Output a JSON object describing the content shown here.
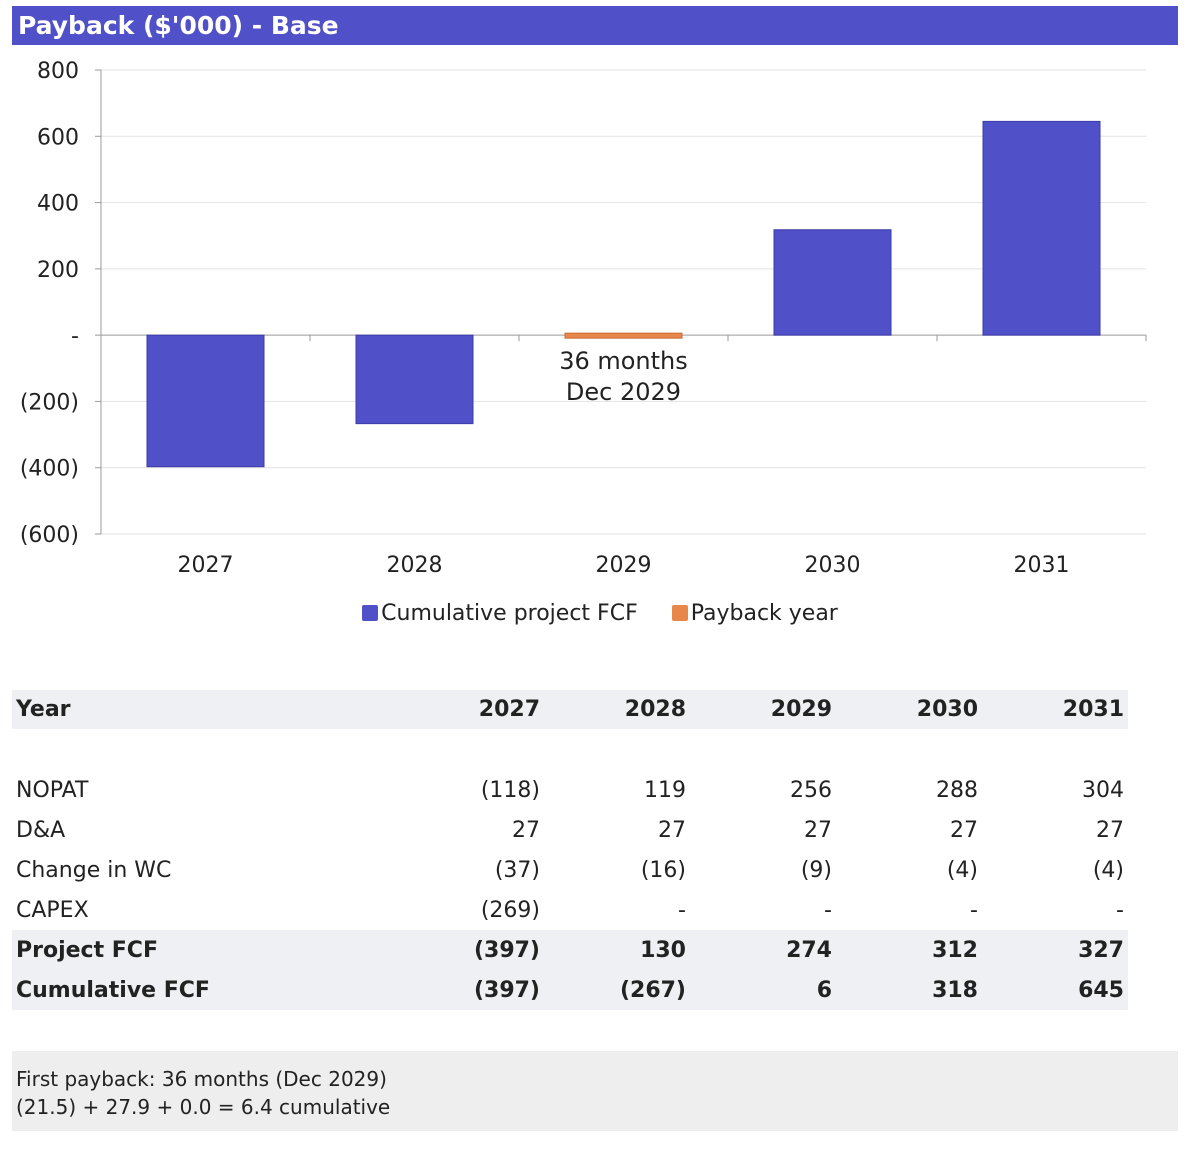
{
  "title": "Payback ($'000) - Base",
  "chart_data": {
    "type": "bar",
    "categories": [
      "2027",
      "2028",
      "2029",
      "2030",
      "2031"
    ],
    "series": [
      {
        "name": "Cumulative project FCF",
        "values": [
          -397,
          -267,
          6,
          318,
          645
        ],
        "color": "#5050c8"
      },
      {
        "name": "Payback year",
        "values": [
          null,
          null,
          6,
          null,
          null
        ],
        "color": "#e8874a"
      }
    ],
    "ylim": [
      -600,
      800
    ],
    "yticks": [
      800,
      600,
      400,
      200,
      0,
      -200,
      -400,
      -600
    ],
    "ytick_labels": [
      "800",
      "600",
      "400",
      "200",
      "-",
      "(200)",
      "(400)",
      "(600)"
    ],
    "annotation": {
      "category": "2029",
      "lines": [
        "36 months",
        "Dec 2029"
      ]
    },
    "grid": true,
    "legend": "bottom"
  },
  "table": {
    "header": {
      "label": "Year",
      "values": [
        "2027",
        "2028",
        "2029",
        "2030",
        "2031"
      ]
    },
    "rows": [
      {
        "label": "NOPAT",
        "values": [
          "(118)",
          "119",
          "256",
          "288",
          "304"
        ]
      },
      {
        "label": "D&A",
        "values": [
          "27",
          "27",
          "27",
          "27",
          "27"
        ]
      },
      {
        "label": "Change in WC",
        "values": [
          "(37)",
          "(16)",
          "(9)",
          "(4)",
          "(4)"
        ]
      },
      {
        "label": "CAPEX",
        "values": [
          "(269)",
          "-",
          "-",
          "-",
          "-"
        ]
      }
    ],
    "bold_rows": [
      {
        "label": "Project FCF",
        "values": [
          "(397)",
          "130",
          "274",
          "312",
          "327"
        ]
      },
      {
        "label": "Cumulative FCF",
        "values": [
          "(397)",
          "(267)",
          "6",
          "318",
          "645"
        ]
      }
    ]
  },
  "note": {
    "line1": "First payback: 36 months (Dec 2029)",
    "line2": "(21.5) + 27.9 + 0.0 = 6.4 cumulative"
  }
}
